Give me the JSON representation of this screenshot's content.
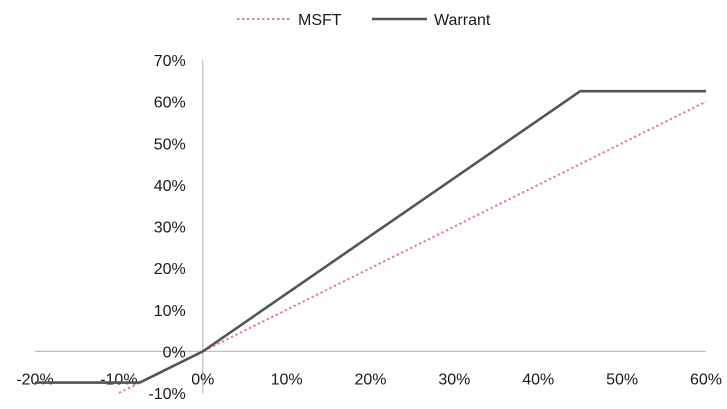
{
  "chart_data": {
    "type": "line",
    "title": "",
    "xlabel": "",
    "ylabel": "",
    "xlim": [
      -20,
      60
    ],
    "ylim": [
      -10,
      70
    ],
    "x_ticks": [
      "-20%",
      "-10%",
      "0%",
      "10%",
      "20%",
      "30%",
      "40%",
      "50%",
      "60%"
    ],
    "y_ticks": [
      "-10%",
      "0%",
      "10%",
      "20%",
      "30%",
      "40%",
      "50%",
      "60%",
      "70%"
    ],
    "grid": false,
    "legend_position": "top-center",
    "series": [
      {
        "name": "MSFT",
        "color": "#e8808a",
        "style": "dotted",
        "x": [
          -10,
          60
        ],
        "y": [
          -10,
          60
        ]
      },
      {
        "name": "Warrant",
        "color": "#555555",
        "style": "solid",
        "x": [
          -20,
          -7.5,
          0,
          45,
          60
        ],
        "y": [
          -7.5,
          -7.5,
          0,
          62.5,
          62.5
        ]
      }
    ]
  }
}
